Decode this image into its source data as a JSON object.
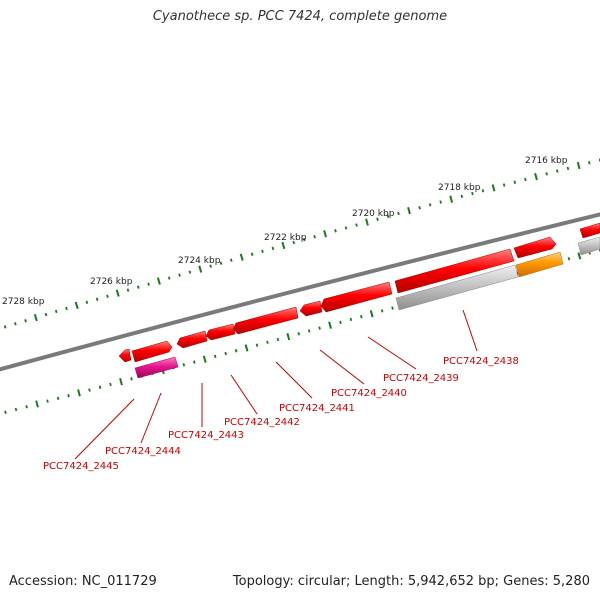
{
  "title": "Cyanothece sp. PCC 7424, complete genome",
  "footer": {
    "accession": "Accession: NC_011729",
    "summary": "Topology: circular; Length: 5,942,652 bp; Genes: 5,280"
  },
  "colors": {
    "backbone": "#888888",
    "tick": "#1a7a1a",
    "gene_red": "#ee0000",
    "gene_pink": "#e0188c",
    "gene_orange": "#ff9900",
    "gene_gray": "#bbbbbb",
    "label": "#cc0000"
  },
  "scale_labels": [
    "2728 kbp",
    "2726 kbp",
    "2724 kbp",
    "2722 kbp",
    "2720 kbp",
    "2718 kbp",
    "2716 kbp"
  ],
  "gene_labels": [
    "PCC7424_2445",
    "PCC7424_2444",
    "PCC7424_2443",
    "PCC7424_2442",
    "PCC7424_2441",
    "PCC7424_2440",
    "PCC7424_2439",
    "PCC7424_2438"
  ]
}
